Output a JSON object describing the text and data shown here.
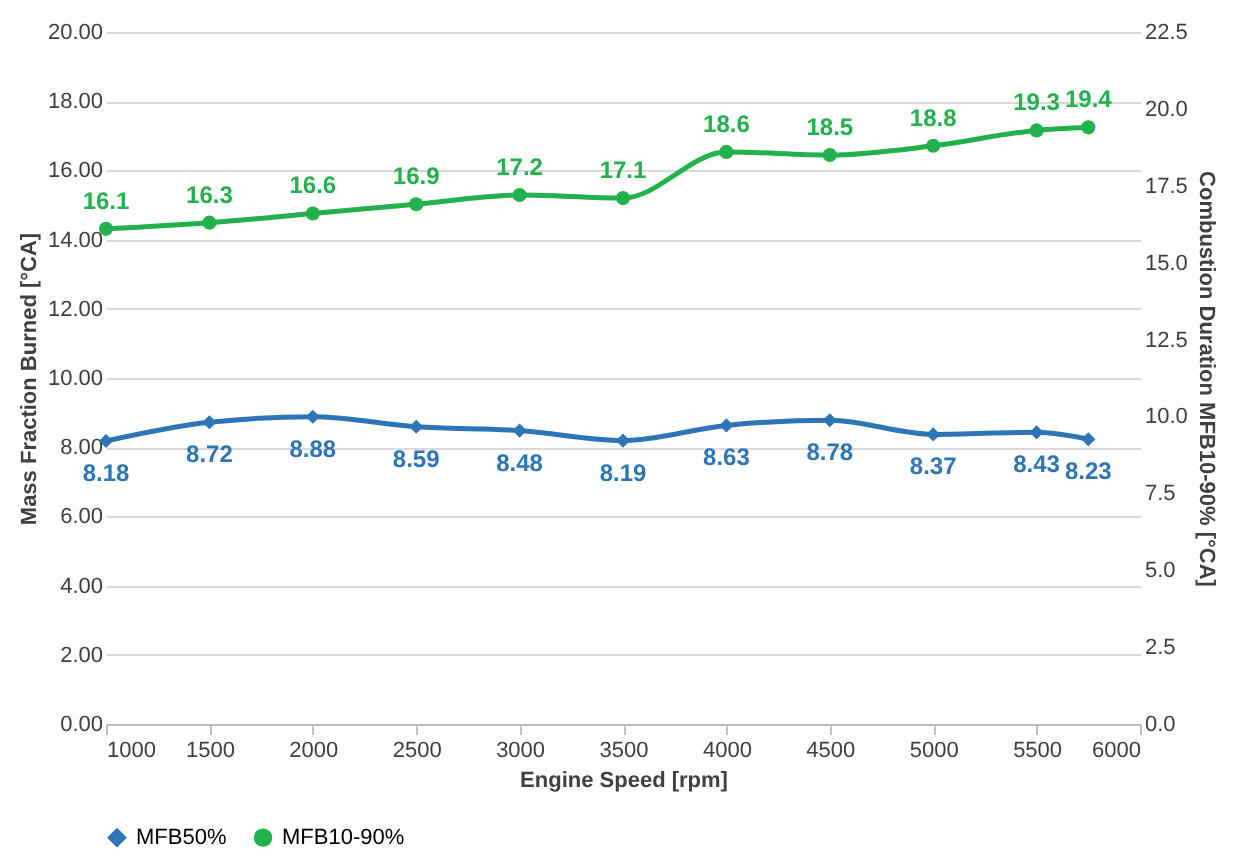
{
  "chart_data": {
    "type": "line",
    "x": [
      1000,
      1500,
      2000,
      2500,
      3000,
      3500,
      4000,
      4500,
      5000,
      5500,
      5750
    ],
    "series": [
      {
        "name": "MFB50%",
        "color": "#2e75b6",
        "marker": "diamond",
        "values": [
          8.18,
          8.72,
          8.88,
          8.59,
          8.48,
          8.19,
          8.63,
          8.78,
          8.37,
          8.43,
          8.23
        ]
      },
      {
        "name": "MFB10-90%",
        "color": "#22b14c",
        "marker": "circle",
        "axis": "y2",
        "values": [
          16.1,
          16.3,
          16.6,
          16.9,
          17.2,
          17.1,
          18.6,
          18.5,
          18.8,
          19.3,
          19.4
        ]
      }
    ],
    "xlabel": "Engine Speed [rpm]",
    "ylabel": "Mass Fraction Burned [°CA]",
    "y2label": "Combustion Duration MFB10-90% [°CA]",
    "xlim": [
      1000,
      6000
    ],
    "xticks": [
      1000,
      1500,
      2000,
      2500,
      3000,
      3500,
      4000,
      4500,
      5000,
      5500,
      6000
    ],
    "ylim": [
      0,
      20
    ],
    "yticks": [
      {
        "value": 0,
        "label": "0.00"
      },
      {
        "value": 2,
        "label": "2.00"
      },
      {
        "value": 4,
        "label": "4.00"
      },
      {
        "value": 6,
        "label": "6.00"
      },
      {
        "value": 8,
        "label": "8.00"
      },
      {
        "value": 10,
        "label": "10.00"
      },
      {
        "value": 12,
        "label": "12.00"
      },
      {
        "value": 14,
        "label": "14.00"
      },
      {
        "value": 16,
        "label": "16.00"
      },
      {
        "value": 18,
        "label": "18.00"
      },
      {
        "value": 20,
        "label": "20.00"
      }
    ],
    "y2lim": [
      0,
      22.5
    ],
    "y2ticks": [
      {
        "value": 0,
        "label": "0.0"
      },
      {
        "value": 2.5,
        "label": "2.5"
      },
      {
        "value": 5,
        "label": "5.0"
      },
      {
        "value": 7.5,
        "label": "7.5"
      },
      {
        "value": 10,
        "label": "10.0"
      },
      {
        "value": 12.5,
        "label": "12.5"
      },
      {
        "value": 15,
        "label": "15.0"
      },
      {
        "value": 17.5,
        "label": "17.5"
      },
      {
        "value": 20,
        "label": "20.0"
      },
      {
        "value": 22.5,
        "label": "22.5"
      }
    ],
    "grid": "y",
    "legend": "bottom",
    "data_labels": true,
    "line_style": "solid"
  }
}
